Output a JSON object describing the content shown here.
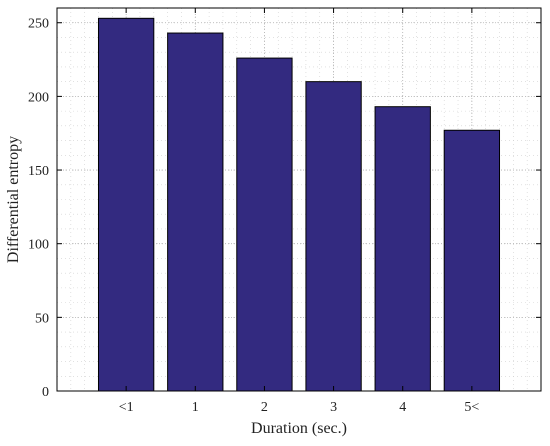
{
  "chart_data": {
    "type": "bar",
    "categories": [
      "<1",
      "1",
      "2",
      "3",
      "4",
      "5<"
    ],
    "values": [
      253,
      243,
      226,
      210,
      193,
      177
    ],
    "title": "",
    "xlabel": "Duration (sec.)",
    "ylabel": "Differential entropy",
    "ylim": [
      0,
      260
    ],
    "yticks": [
      0,
      50,
      100,
      150,
      200,
      250
    ],
    "grid": "on",
    "minor_grid": "on",
    "bar_color": "#332a80",
    "bar_edge_color": "#000000"
  }
}
